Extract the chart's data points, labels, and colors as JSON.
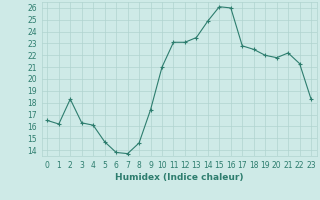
{
  "x": [
    0,
    1,
    2,
    3,
    4,
    5,
    6,
    7,
    8,
    9,
    10,
    11,
    12,
    13,
    14,
    15,
    16,
    17,
    18,
    19,
    20,
    21,
    22,
    23
  ],
  "y": [
    16.5,
    16.2,
    18.3,
    16.3,
    16.1,
    14.7,
    13.8,
    13.7,
    14.6,
    17.4,
    21.0,
    23.1,
    23.1,
    23.5,
    24.9,
    26.1,
    26.0,
    22.8,
    22.5,
    22.0,
    21.8,
    22.2,
    21.3,
    18.3
  ],
  "line_color": "#2d7d6e",
  "marker": "+",
  "marker_size": 3,
  "marker_lw": 0.8,
  "bg_color": "#ceeae7",
  "grid_color": "#b0d4d0",
  "xlabel": "Humidex (Indice chaleur)",
  "xlim": [
    -0.5,
    23.5
  ],
  "ylim": [
    13.5,
    26.5
  ],
  "xticks": [
    0,
    1,
    2,
    3,
    4,
    5,
    6,
    7,
    8,
    9,
    10,
    11,
    12,
    13,
    14,
    15,
    16,
    17,
    18,
    19,
    20,
    21,
    22,
    23
  ],
  "yticks": [
    14,
    15,
    16,
    17,
    18,
    19,
    20,
    21,
    22,
    23,
    24,
    25,
    26
  ],
  "xlabel_fontsize": 6.5,
  "tick_fontsize": 5.5
}
